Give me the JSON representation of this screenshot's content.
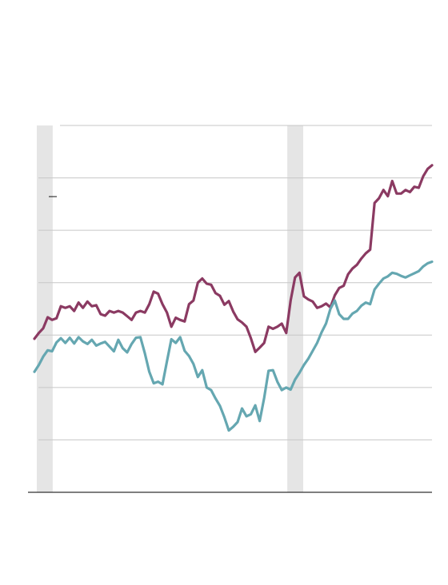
{
  "chart_data": {
    "type": "line",
    "title": "",
    "xlabel": "",
    "ylabel": "",
    "x_range": [
      0,
      100
    ],
    "ylim": [
      0,
      7
    ],
    "y_gridlines": [
      1,
      2,
      3,
      4,
      5,
      6,
      7
    ],
    "grid": "horizontal",
    "legend": "none",
    "shaded_bands": [
      [
        0,
        4
      ],
      [
        63,
        67
      ]
    ],
    "colors": {
      "series1": "#8b3a62",
      "series2": "#65a7b1",
      "band": "#e5e5e5",
      "grid": "#c7c7c7",
      "axis": "#333333"
    },
    "series": [
      {
        "values": [
          [
            0,
            2.93
          ],
          [
            1,
            3.04
          ],
          [
            2,
            3.13
          ],
          [
            3,
            3.34
          ],
          [
            4,
            3.29
          ],
          [
            5,
            3.32
          ],
          [
            6,
            3.55
          ],
          [
            7,
            3.52
          ],
          [
            8,
            3.55
          ],
          [
            9,
            3.46
          ],
          [
            10,
            3.62
          ],
          [
            11,
            3.52
          ],
          [
            12,
            3.64
          ],
          [
            13,
            3.55
          ],
          [
            14,
            3.57
          ],
          [
            15,
            3.4
          ],
          [
            16,
            3.37
          ],
          [
            17,
            3.46
          ],
          [
            18,
            3.43
          ],
          [
            19,
            3.46
          ],
          [
            20,
            3.43
          ],
          [
            21,
            3.36
          ],
          [
            22,
            3.29
          ],
          [
            23,
            3.43
          ],
          [
            24,
            3.46
          ],
          [
            25,
            3.43
          ],
          [
            26,
            3.59
          ],
          [
            27,
            3.83
          ],
          [
            28,
            3.79
          ],
          [
            29,
            3.59
          ],
          [
            30,
            3.43
          ],
          [
            31,
            3.16
          ],
          [
            32,
            3.33
          ],
          [
            33,
            3.29
          ],
          [
            34,
            3.26
          ],
          [
            35,
            3.59
          ],
          [
            36,
            3.66
          ],
          [
            37,
            4.0
          ],
          [
            38,
            4.08
          ],
          [
            39,
            3.98
          ],
          [
            40,
            3.96
          ],
          [
            41,
            3.8
          ],
          [
            42,
            3.75
          ],
          [
            43,
            3.58
          ],
          [
            44,
            3.65
          ],
          [
            45,
            3.45
          ],
          [
            46,
            3.3
          ],
          [
            47,
            3.24
          ],
          [
            48,
            3.16
          ],
          [
            49,
            2.94
          ],
          [
            50,
            2.68
          ],
          [
            51,
            2.76
          ],
          [
            52,
            2.85
          ],
          [
            53,
            3.16
          ],
          [
            54,
            3.12
          ],
          [
            55,
            3.16
          ],
          [
            56,
            3.22
          ],
          [
            57,
            3.04
          ],
          [
            58,
            3.66
          ],
          [
            59,
            4.1
          ],
          [
            60,
            4.19
          ],
          [
            61,
            3.74
          ],
          [
            62,
            3.68
          ],
          [
            63,
            3.64
          ],
          [
            64,
            3.52
          ],
          [
            65,
            3.55
          ],
          [
            66,
            3.6
          ],
          [
            67,
            3.53
          ],
          [
            68,
            3.76
          ],
          [
            69,
            3.9
          ],
          [
            70,
            3.94
          ],
          [
            71,
            4.16
          ],
          [
            72,
            4.27
          ],
          [
            73,
            4.34
          ],
          [
            74,
            4.46
          ],
          [
            75,
            4.56
          ],
          [
            76,
            4.63
          ],
          [
            77,
            5.52
          ],
          [
            78,
            5.61
          ],
          [
            79,
            5.77
          ],
          [
            80,
            5.65
          ],
          [
            81,
            5.94
          ],
          [
            82,
            5.7
          ],
          [
            83,
            5.7
          ],
          [
            84,
            5.77
          ],
          [
            85,
            5.73
          ],
          [
            86,
            5.83
          ],
          [
            87,
            5.81
          ],
          [
            88,
            6.03
          ],
          [
            89,
            6.17
          ],
          [
            90,
            6.24
          ]
        ]
      },
      {
        "values": [
          [
            0,
            2.3
          ],
          [
            1,
            2.43
          ],
          [
            2,
            2.59
          ],
          [
            3,
            2.71
          ],
          [
            4,
            2.69
          ],
          [
            5,
            2.86
          ],
          [
            6,
            2.94
          ],
          [
            7,
            2.85
          ],
          [
            8,
            2.95
          ],
          [
            9,
            2.84
          ],
          [
            10,
            2.96
          ],
          [
            11,
            2.88
          ],
          [
            12,
            2.83
          ],
          [
            13,
            2.91
          ],
          [
            14,
            2.8
          ],
          [
            15,
            2.84
          ],
          [
            16,
            2.87
          ],
          [
            17,
            2.78
          ],
          [
            18,
            2.69
          ],
          [
            19,
            2.91
          ],
          [
            20,
            2.75
          ],
          [
            21,
            2.67
          ],
          [
            22,
            2.83
          ],
          [
            23,
            2.95
          ],
          [
            24,
            2.96
          ],
          [
            25,
            2.65
          ],
          [
            26,
            2.3
          ],
          [
            27,
            2.08
          ],
          [
            28,
            2.11
          ],
          [
            29,
            2.06
          ],
          [
            30,
            2.5
          ],
          [
            31,
            2.92
          ],
          [
            32,
            2.85
          ],
          [
            33,
            2.96
          ],
          [
            34,
            2.7
          ],
          [
            35,
            2.6
          ],
          [
            36,
            2.45
          ],
          [
            37,
            2.2
          ],
          [
            38,
            2.33
          ],
          [
            39,
            2.0
          ],
          [
            40,
            1.95
          ],
          [
            41,
            1.79
          ],
          [
            42,
            1.65
          ],
          [
            43,
            1.43
          ],
          [
            44,
            1.18
          ],
          [
            45,
            1.25
          ],
          [
            46,
            1.34
          ],
          [
            47,
            1.6
          ],
          [
            48,
            1.45
          ],
          [
            49,
            1.49
          ],
          [
            50,
            1.66
          ],
          [
            51,
            1.36
          ],
          [
            52,
            1.8
          ],
          [
            53,
            2.32
          ],
          [
            54,
            2.33
          ],
          [
            55,
            2.11
          ],
          [
            56,
            1.95
          ],
          [
            57,
            2.0
          ],
          [
            58,
            1.96
          ],
          [
            59,
            2.15
          ],
          [
            60,
            2.28
          ],
          [
            61,
            2.43
          ],
          [
            62,
            2.55
          ],
          [
            63,
            2.7
          ],
          [
            64,
            2.85
          ],
          [
            65,
            3.05
          ],
          [
            66,
            3.22
          ],
          [
            67,
            3.5
          ],
          [
            68,
            3.66
          ],
          [
            69,
            3.4
          ],
          [
            70,
            3.31
          ],
          [
            71,
            3.31
          ],
          [
            72,
            3.41
          ],
          [
            73,
            3.46
          ],
          [
            74,
            3.56
          ],
          [
            75,
            3.62
          ],
          [
            76,
            3.59
          ],
          [
            77,
            3.87
          ],
          [
            78,
            3.98
          ],
          [
            79,
            4.08
          ],
          [
            80,
            4.12
          ],
          [
            81,
            4.19
          ],
          [
            82,
            4.17
          ],
          [
            83,
            4.13
          ],
          [
            84,
            4.1
          ],
          [
            85,
            4.14
          ],
          [
            86,
            4.18
          ],
          [
            87,
            4.22
          ],
          [
            88,
            4.31
          ],
          [
            89,
            4.37
          ],
          [
            90,
            4.4
          ]
        ]
      }
    ]
  }
}
